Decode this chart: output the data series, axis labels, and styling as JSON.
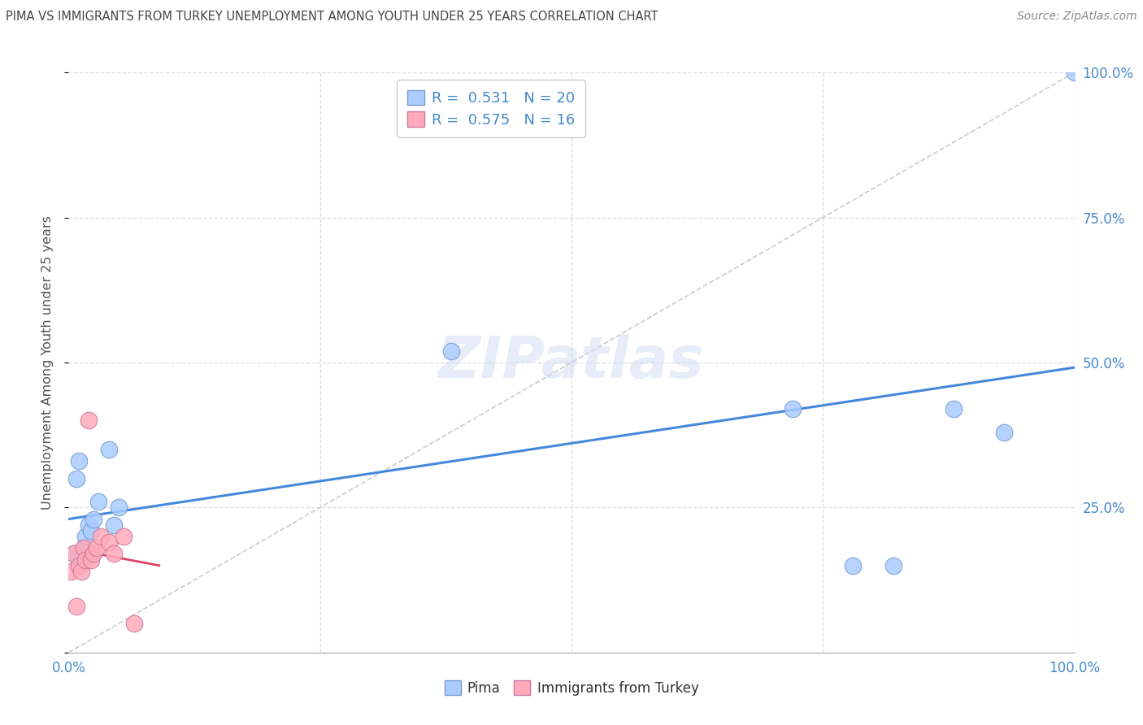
{
  "title": "PIMA VS IMMIGRANTS FROM TURKEY UNEMPLOYMENT AMONG YOUTH UNDER 25 YEARS CORRELATION CHART",
  "source": "Source: ZipAtlas.com",
  "ylabel": "Unemployment Among Youth under 25 years",
  "pima_color": "#aaccff",
  "pima_edge_color": "#7799cc",
  "turkey_color": "#ffaabb",
  "turkey_edge_color": "#cc7799",
  "pima_R": 0.531,
  "pima_N": 20,
  "turkey_R": 0.575,
  "turkey_N": 16,
  "legend_label_pima": "Pima",
  "legend_label_turkey": "Immigrants from Turkey",
  "pima_x": [
    0.005,
    0.008,
    0.01,
    0.013,
    0.015,
    0.017,
    0.02,
    0.022,
    0.025,
    0.03,
    0.04,
    0.045,
    0.05,
    0.38,
    0.72,
    0.78,
    0.82,
    0.88,
    0.93,
    1.0
  ],
  "pima_y": [
    0.17,
    0.3,
    0.33,
    0.16,
    0.18,
    0.2,
    0.22,
    0.21,
    0.23,
    0.26,
    0.35,
    0.22,
    0.25,
    0.52,
    0.42,
    0.15,
    0.15,
    0.42,
    0.38,
    1.0
  ],
  "turkey_x": [
    0.002,
    0.005,
    0.008,
    0.01,
    0.013,
    0.015,
    0.017,
    0.02,
    0.022,
    0.025,
    0.028,
    0.032,
    0.04,
    0.045,
    0.055,
    0.065
  ],
  "turkey_y": [
    0.14,
    0.17,
    0.08,
    0.15,
    0.14,
    0.18,
    0.16,
    0.4,
    0.16,
    0.17,
    0.18,
    0.2,
    0.19,
    0.17,
    0.2,
    0.05
  ],
  "pima_trendline_color": "#4488dd",
  "turkey_trendline_color": "#dd4466",
  "diagonal_color": "#cccccc",
  "background_color": "#ffffff",
  "grid_color": "#dddddd",
  "title_color": "#444444",
  "source_color": "#888888",
  "axis_label_color": "#4488cc",
  "right_ytick_vals": [
    1.0,
    0.75,
    0.5,
    0.25
  ],
  "right_ytick_labels": [
    "100.0%",
    "75.0%",
    "50.0%",
    "25.0%"
  ],
  "xlim": [
    0.0,
    1.0
  ],
  "ylim": [
    0.0,
    1.0
  ]
}
